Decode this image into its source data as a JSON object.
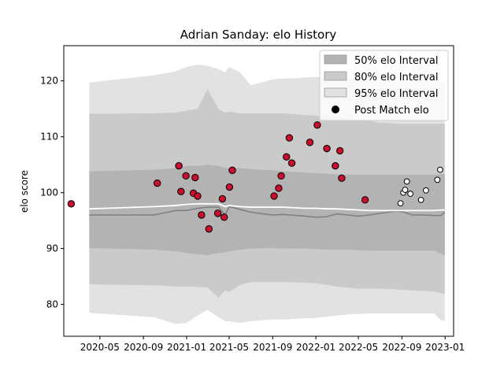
{
  "chart_data": {
    "type": "scatter",
    "title": "Adrian Sanday: elo History",
    "xlabel": "",
    "ylabel": "elo score",
    "x_ticks": [
      "2020-05",
      "2020-09",
      "2021-01",
      "2021-05",
      "2021-09",
      "2022-01",
      "2022-05",
      "2022-09",
      "2023-01"
    ],
    "y_ticks": [
      80,
      90,
      100,
      110,
      120
    ],
    "xlim": [
      "2020-01-20",
      "2023-01-25"
    ],
    "ylim": [
      74.3,
      126.3
    ],
    "legend_position": "top-right",
    "legend": [
      {
        "label": "50% elo Interval",
        "kind": "patch",
        "color": "#b3b3b3"
      },
      {
        "label": "80% elo Interval",
        "kind": "patch",
        "color": "#cacaca"
      },
      {
        "label": "95% elo Interval",
        "kind": "patch",
        "color": "#e2e2e2"
      },
      {
        "label": "Post Match elo",
        "kind": "marker",
        "color": "#000000"
      }
    ],
    "colors": {
      "band50": "#b3b3b3",
      "band80": "#cacaca",
      "band95": "#e2e2e2",
      "median_line": "#ffffff",
      "lower_line": "#808080",
      "past_points": "#c8102e",
      "recent_points": "#ffffff",
      "point_edge": "#000000"
    },
    "timeline": {
      "dates": [
        "2020-04-01",
        "2020-10-01",
        "2020-12-01",
        "2021-01-01",
        "2021-02-01",
        "2021-03-01",
        "2021-04-01",
        "2021-04-20",
        "2021-05-01",
        "2021-06-01",
        "2021-07-01",
        "2021-09-01",
        "2021-10-01",
        "2021-12-01",
        "2022-01-01",
        "2022-02-01",
        "2022-03-01",
        "2022-04-01",
        "2022-05-01",
        "2022-06-01",
        "2022-07-01",
        "2022-08-15",
        "2022-09-01",
        "2022-10-01",
        "2022-11-01",
        "2022-12-01",
        "2022-12-20",
        "2022-12-31"
      ],
      "median": [
        97.1,
        97.5,
        97.7,
        97.9,
        98.0,
        98.0,
        98.0,
        97.5,
        97.7,
        97.5,
        97.4,
        97.4,
        97.4,
        97.2,
        97.2,
        97.1,
        97.1,
        97.0,
        96.9,
        96.8,
        96.8,
        96.8,
        96.8,
        96.8,
        96.8,
        96.8,
        96.9,
        96.9
      ],
      "lower_line": [
        96.0,
        96.0,
        96.8,
        96.8,
        97.2,
        97.4,
        97.4,
        96.0,
        97.5,
        97.0,
        96.5,
        96.0,
        96.1,
        95.8,
        95.6,
        95.7,
        96.2,
        96.0,
        95.8,
        96.0,
        96.3,
        96.7,
        96.6,
        96.0,
        96.0,
        95.9,
        95.9,
        96.5
      ],
      "band50_upper": [
        103.8,
        104.1,
        104.4,
        104.8,
        104.8,
        105.0,
        104.8,
        104.4,
        104.4,
        104.4,
        104.2,
        104.0,
        103.8,
        103.6,
        103.5,
        103.4,
        103.3,
        103.2,
        103.2,
        103.2,
        103.2,
        103.2,
        103.2,
        103.2,
        103.2,
        103.2,
        103.3,
        103.3
      ],
      "band50_lower": [
        90.1,
        89.8,
        89.5,
        89.2,
        89.0,
        88.8,
        89.2,
        89.3,
        89.5,
        89.8,
        90.0,
        90.1,
        90.0,
        90.0,
        89.9,
        89.8,
        89.8,
        89.8,
        89.7,
        89.6,
        89.6,
        89.6,
        89.6,
        89.6,
        89.6,
        89.6,
        89.1,
        88.8
      ],
      "band80_upper": [
        114.1,
        114.2,
        114.3,
        114.7,
        115.0,
        118.5,
        115.0,
        114.3,
        114.5,
        114.2,
        114.2,
        114.2,
        114.2,
        113.9,
        113.8,
        113.6,
        113.5,
        113.2,
        113.0,
        112.8,
        112.5,
        112.4,
        112.3,
        112.3,
        112.3,
        112.3,
        112.3,
        112.3
      ],
      "band80_lower": [
        83.6,
        83.4,
        83.2,
        83.2,
        83.1,
        83.0,
        81.2,
        82.5,
        82.2,
        83.5,
        84.0,
        84.0,
        84.0,
        83.9,
        83.8,
        83.5,
        83.2,
        83.0,
        82.8,
        82.8,
        82.8,
        82.7,
        82.6,
        82.5,
        82.4,
        82.3,
        82.0,
        81.9
      ],
      "band95_upper": [
        119.7,
        121.0,
        121.7,
        122.5,
        122.9,
        122.7,
        122.1,
        121.5,
        122.5,
        121.5,
        119.2,
        120.3,
        120.4,
        120.6,
        120.7,
        120.6,
        120.6,
        120.4,
        120.2,
        120.0,
        119.8,
        119.8,
        119.8,
        119.8,
        119.8,
        119.8,
        119.8,
        119.8
      ],
      "band95_lower": [
        78.5,
        77.7,
        76.5,
        76.7,
        78.0,
        79.0,
        77.7,
        77.0,
        77.0,
        76.7,
        77.0,
        77.3,
        77.3,
        77.5,
        77.6,
        77.8,
        78.0,
        78.2,
        78.3,
        78.4,
        78.4,
        78.4,
        78.4,
        78.4,
        78.4,
        78.4,
        77.2,
        77.0
      ]
    },
    "series": [
      {
        "name": "Post Match elo",
        "points": [
          {
            "x": "2020-02-10",
            "y": 98.0
          },
          {
            "x": "2020-10-10",
            "y": 101.7
          },
          {
            "x": "2020-12-10",
            "y": 104.8
          },
          {
            "x": "2020-12-16",
            "y": 100.2
          },
          {
            "x": "2020-12-30",
            "y": 103.0
          },
          {
            "x": "2021-01-20",
            "y": 99.9
          },
          {
            "x": "2021-01-25",
            "y": 102.7
          },
          {
            "x": "2021-02-01",
            "y": 99.4
          },
          {
            "x": "2021-02-12",
            "y": 96.0
          },
          {
            "x": "2021-03-05",
            "y": 93.5
          },
          {
            "x": "2021-03-30",
            "y": 96.3
          },
          {
            "x": "2021-04-12",
            "y": 98.9
          },
          {
            "x": "2021-04-17",
            "y": 95.6
          },
          {
            "x": "2021-05-02",
            "y": 101.0
          },
          {
            "x": "2021-05-10",
            "y": 104.0
          },
          {
            "x": "2021-09-05",
            "y": 99.4
          },
          {
            "x": "2021-09-18",
            "y": 100.8
          },
          {
            "x": "2021-09-25",
            "y": 103.0
          },
          {
            "x": "2021-10-10",
            "y": 106.4
          },
          {
            "x": "2021-10-18",
            "y": 109.8
          },
          {
            "x": "2021-10-25",
            "y": 105.3
          },
          {
            "x": "2021-12-15",
            "y": 109.0
          },
          {
            "x": "2022-01-05",
            "y": 112.1
          },
          {
            "x": "2022-02-01",
            "y": 107.9
          },
          {
            "x": "2022-02-25",
            "y": 104.8
          },
          {
            "x": "2022-03-10",
            "y": 107.5
          },
          {
            "x": "2022-03-15",
            "y": 102.6
          },
          {
            "x": "2022-05-20",
            "y": 98.7
          }
        ]
      },
      {
        "name": "Post Match elo (recent)",
        "points": [
          {
            "x": "2022-08-28",
            "y": 98.1
          },
          {
            "x": "2022-09-05",
            "y": 100.0
          },
          {
            "x": "2022-09-10",
            "y": 100.5
          },
          {
            "x": "2022-09-15",
            "y": 102.0
          },
          {
            "x": "2022-09-25",
            "y": 99.8
          },
          {
            "x": "2022-10-25",
            "y": 98.7
          },
          {
            "x": "2022-11-08",
            "y": 100.4
          },
          {
            "x": "2022-12-10",
            "y": 102.3
          },
          {
            "x": "2022-12-18",
            "y": 104.1
          }
        ]
      }
    ]
  }
}
